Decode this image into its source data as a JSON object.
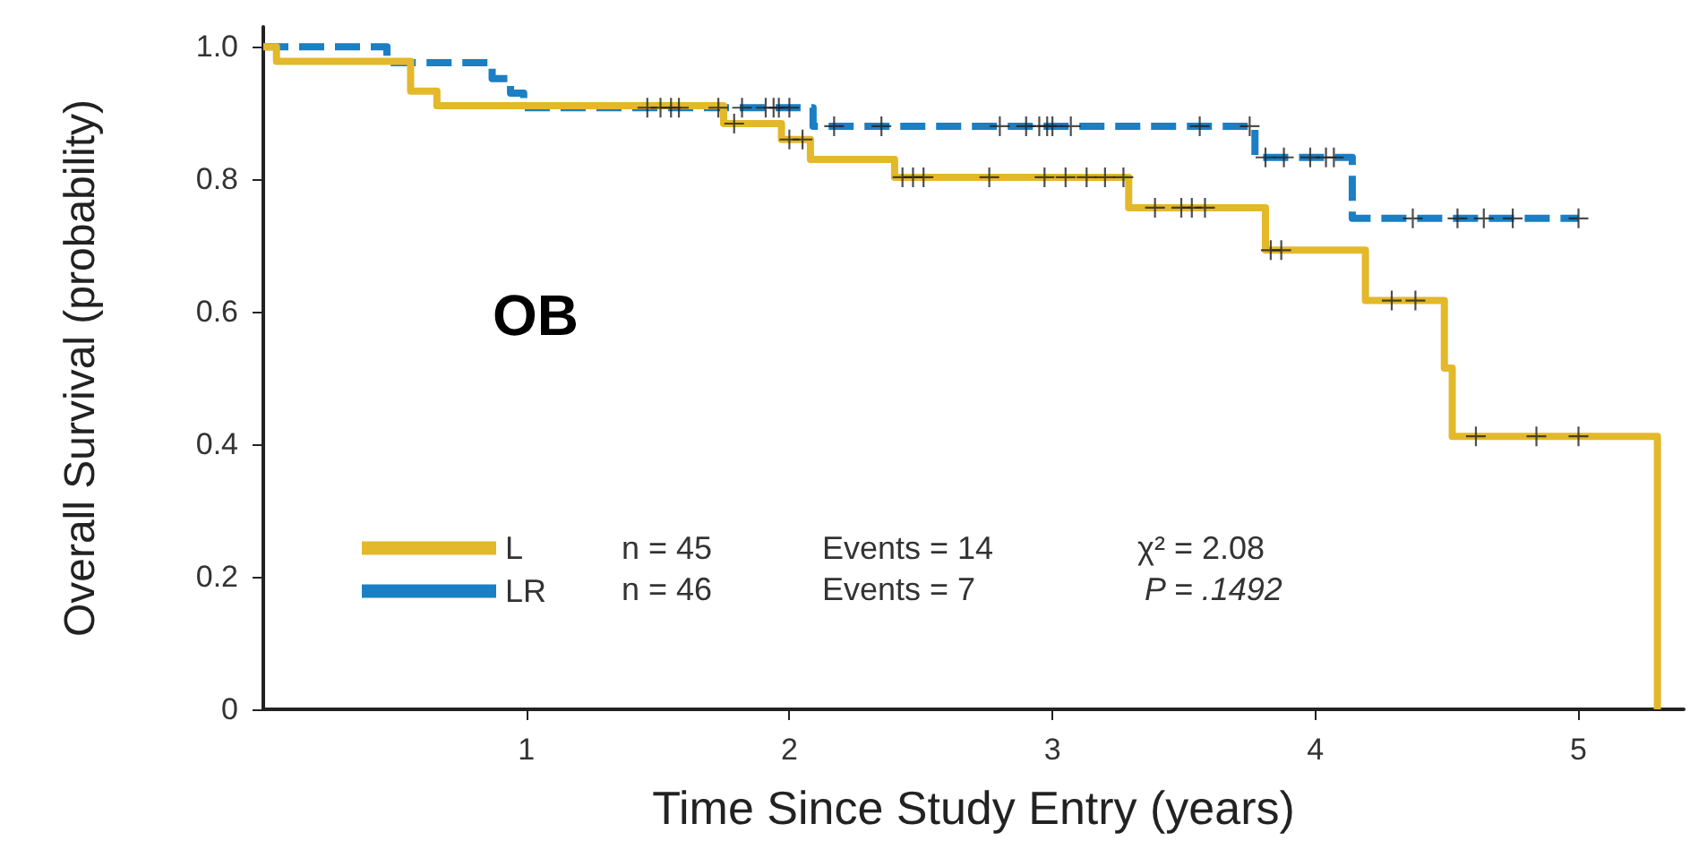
{
  "chart_data": {
    "type": "step",
    "xlabel": "Time Since Study Entry (years)",
    "ylabel": "Overall Survival (probability)",
    "xlim": [
      0,
      5.4
    ],
    "xticks": [
      1,
      2,
      3,
      4,
      5
    ],
    "ylim": [
      0,
      1.03
    ],
    "yticks": [
      0,
      0.2,
      0.4,
      0.6,
      0.8,
      {
        "value": 1,
        "label": "1.0"
      }
    ],
    "grid": false,
    "legend": "bottom left",
    "marker": "none",
    "annotations": [
      "OB",
      "n = 45",
      "Events = 14",
      "χ² = 2.08",
      "n = 46",
      "Events = 7",
      "P = .1492"
    ],
    "series": [
      {
        "name": "L",
        "color": "#e3b82a",
        "line_style": "solid",
        "x": [
          0,
          0.05,
          0.56,
          0.66,
          1.75,
          1.97,
          2.08,
          2.4,
          3.29,
          3.81,
          4.19,
          4.49,
          4.52,
          5.3
        ],
        "values": [
          1,
          0.978,
          0.933,
          0.911,
          0.884,
          0.86,
          0.83,
          0.803,
          0.757,
          0.693,
          0.617,
          0.515,
          0.412,
          0
        ]
      },
      {
        "name": "LR",
        "color": "#1a7fc4",
        "line_style": "dashed",
        "x": [
          0,
          0.47,
          0.87,
          0.94,
          0.99,
          2.09,
          3.77,
          4.14,
          5.0
        ],
        "values": [
          1,
          0.976,
          0.952,
          0.93,
          0.908,
          0.88,
          0.833,
          0.741,
          0.741
        ]
      },
      {
        "type": "scatter",
        "marker": "cross",
        "color": "#222222",
        "x": [
          1.79,
          2.0,
          2.05,
          2.43,
          2.47,
          2.51,
          2.76,
          2.97,
          3.05,
          3.13,
          3.2,
          3.27,
          3.39,
          3.49,
          3.53,
          3.58,
          3.83,
          3.87,
          4.29,
          4.38,
          4.61,
          4.84,
          5.0
        ],
        "values": [
          0.884,
          0.86,
          0.86,
          0.803,
          0.803,
          0.803,
          0.803,
          0.803,
          0.803,
          0.803,
          0.803,
          0.803,
          0.757,
          0.757,
          0.757,
          0.757,
          0.693,
          0.693,
          0.617,
          0.617,
          0.412,
          0.412,
          0.412
        ]
      },
      {
        "type": "scatter",
        "marker": "cross",
        "color": "#222222",
        "x": [
          1.46,
          1.51,
          1.55,
          1.58,
          1.73,
          1.82,
          1.91,
          1.94,
          1.96,
          2.0,
          2.17,
          2.35,
          2.8,
          2.9,
          2.95,
          2.98,
          3.0,
          3.07,
          3.56,
          3.75,
          3.81,
          3.88,
          3.98,
          4.04,
          4.07,
          4.37,
          4.54,
          4.64,
          4.75,
          5.0
        ],
        "values": [
          0.908,
          0.908,
          0.908,
          0.908,
          0.908,
          0.908,
          0.908,
          0.908,
          0.908,
          0.908,
          0.88,
          0.88,
          0.88,
          0.88,
          0.88,
          0.88,
          0.88,
          0.88,
          0.88,
          0.88,
          0.833,
          0.833,
          0.833,
          0.833,
          0.833,
          0.741,
          0.741,
          0.741,
          0.741,
          0.741
        ]
      }
    ]
  }
}
